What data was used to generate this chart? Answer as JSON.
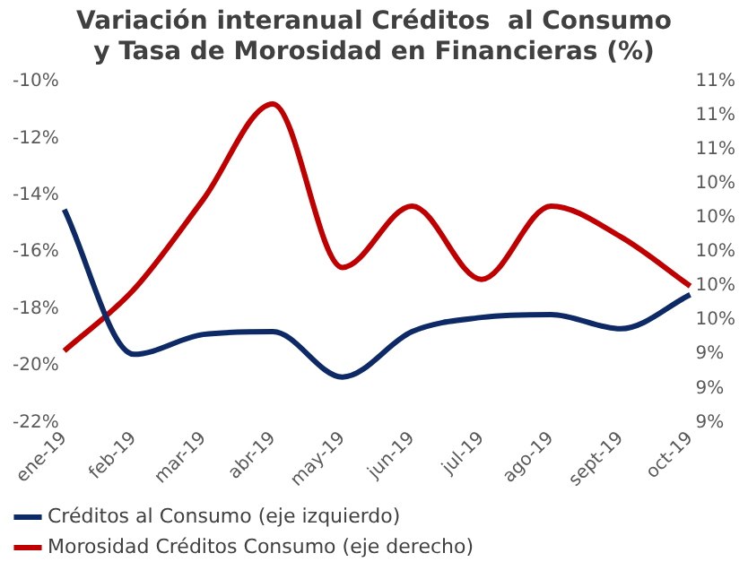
{
  "chart_data": {
    "type": "line",
    "title": "Variación interanual Créditos  al Consumo\ny Tasa de Morosidad en Financieras (%)",
    "categories": [
      "ene-19",
      "feb-19",
      "mar-19",
      "abr-19",
      "may-19",
      "jun-19",
      "jul-19",
      "ago-19",
      "sept-19",
      "oct-19"
    ],
    "series": [
      {
        "name": "Créditos al Consumo (eje izquierdo)",
        "color": "#0e2a66",
        "values": [
          -14.5,
          -19.6,
          -18.9,
          -18.8,
          -20.4,
          -18.8,
          -18.3,
          -18.2,
          -18.7,
          -17.5
        ]
      },
      {
        "name": "Morosidad Créditos Consumo (eje derecho)",
        "color": "#c00000",
        "axis": "y2",
        "values": [
          9.42,
          9.78,
          10.31,
          10.87,
          9.91,
          10.27,
          9.84,
          10.27,
          10.09,
          9.8
        ]
      }
    ],
    "ylim": [
      -22,
      -10
    ],
    "yticks": [
      {
        "value": -22,
        "label": "-22%"
      },
      {
        "value": -20,
        "label": "-20%"
      },
      {
        "value": -18,
        "label": "-18%"
      },
      {
        "value": -16,
        "label": "-16%"
      },
      {
        "value": -14,
        "label": "-14%"
      },
      {
        "value": -12,
        "label": "-12%"
      },
      {
        "value": -10,
        "label": "-10%"
      }
    ],
    "y2lim": [
      9,
      11
    ],
    "y2ticks": [
      {
        "value": 9,
        "label": "9%"
      },
      {
        "value": 9.2,
        "label": "9%"
      },
      {
        "value": 9.4,
        "label": "9%"
      },
      {
        "value": 9.6,
        "label": "10%"
      },
      {
        "value": 9.8,
        "label": "10%"
      },
      {
        "value": 10,
        "label": "10%"
      },
      {
        "value": 10.2,
        "label": "10%"
      },
      {
        "value": 10.4,
        "label": "10%"
      },
      {
        "value": 10.6,
        "label": "11%"
      },
      {
        "value": 10.8,
        "label": "11%"
      },
      {
        "value": 11,
        "label": "11%"
      }
    ],
    "legend": "bottom",
    "marker": "none",
    "line_style": "solid"
  }
}
